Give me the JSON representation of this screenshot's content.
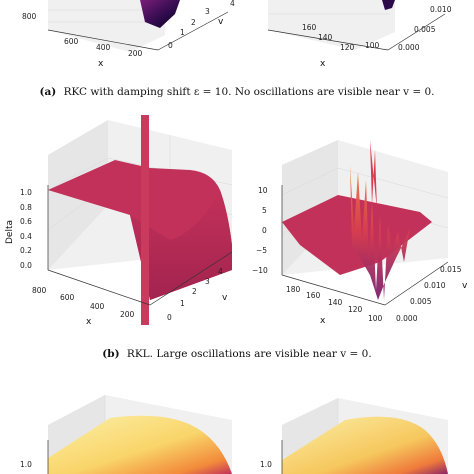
{
  "figure": {
    "caption_a": {
      "label": "(a)",
      "text": "RKC with damping shift ε = 10. No oscillations are visible near v = 0."
    },
    "caption_b": {
      "label": "(b)",
      "text": "RKL. Large oscillations are visible near v = 0."
    },
    "top_left": {
      "z_ticks": [
        "800"
      ],
      "x_ticks": [
        "600",
        "400",
        "200"
      ],
      "x_label": "x",
      "v_ticks": [
        "3",
        "2",
        "1",
        "0"
      ],
      "v_label": "v",
      "extra_tick": "4"
    },
    "top_right": {
      "x_ticks": [
        "160",
        "140",
        "120",
        "100"
      ],
      "v_ticks": [
        "0.010",
        "0.005",
        "0.000"
      ],
      "x_label": "x",
      "v_label": "v"
    },
    "mid_left": {
      "z_label": "Delta",
      "z_ticks": [
        "1.0",
        "0.8",
        "0.6",
        "0.4",
        "0.2",
        "0.0"
      ],
      "x_ticks": [
        "800",
        "600",
        "400",
        "200"
      ],
      "x_label": "x",
      "v_ticks": [
        "4",
        "3",
        "2",
        "1",
        "0"
      ],
      "v_label": "v"
    },
    "mid_right": {
      "z_ticks": [
        "10",
        "5",
        "0",
        "−5",
        "−10"
      ],
      "x_ticks": [
        "180",
        "160",
        "140",
        "120",
        "100"
      ],
      "x_label": "x",
      "v_ticks": [
        "0.015",
        "0.010",
        "0.005",
        "0.000"
      ],
      "v_label": "v"
    },
    "bottom_left": {
      "z_ticks": [
        "1.0"
      ]
    },
    "bottom_right": {
      "z_ticks": [
        "1.0"
      ]
    }
  }
}
